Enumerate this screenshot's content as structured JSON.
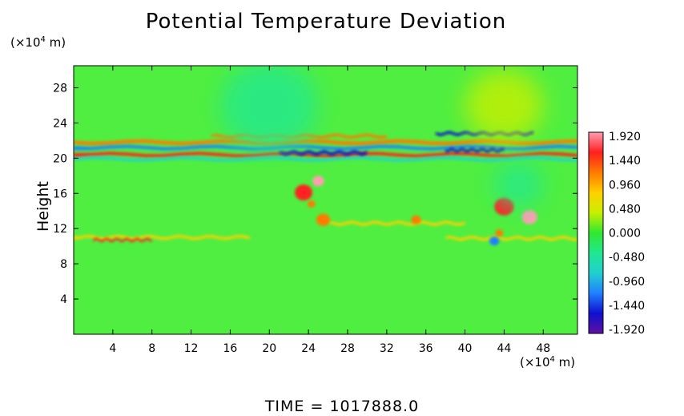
{
  "chart_data": {
    "type": "heatmap",
    "title": "Potential Temperature Deviation",
    "ylabel": "Height",
    "x_unit_prefix": "(×10",
    "x_unit_exp": "4",
    "x_unit_suffix": " m)",
    "y_unit_prefix": "(×10",
    "y_unit_exp": "4",
    "y_unit_suffix": " m)",
    "xlim": [
      0,
      51.5
    ],
    "ylim": [
      0,
      30.5
    ],
    "x_ticks": [
      4,
      8,
      12,
      16,
      20,
      24,
      28,
      32,
      36,
      40,
      44,
      48
    ],
    "y_ticks": [
      4,
      8,
      12,
      16,
      20,
      24,
      28
    ],
    "colorbar": {
      "labels": [
        "1.920",
        "1.440",
        "0.960",
        "0.480",
        "0.000",
        "-0.480",
        "-0.960",
        "-1.440",
        "-1.920"
      ],
      "range": [
        -1.92,
        1.92
      ],
      "colors": [
        "#ff9eb0",
        "#ff2020",
        "#ff7a00",
        "#ffd000",
        "#c8f000",
        "#30e830",
        "#20e890",
        "#20d0d0",
        "#2080ff",
        "#1010d0",
        "#6010a0"
      ]
    },
    "features": [
      {
        "kind": "band",
        "y": 21.8,
        "x0": 0,
        "x1": 51.5,
        "thickness": 0.4,
        "value": 1.2
      },
      {
        "kind": "band",
        "y": 21.2,
        "x0": 0,
        "x1": 51.5,
        "thickness": 0.35,
        "value": -1.2
      },
      {
        "kind": "band",
        "y": 20.4,
        "x0": 0,
        "x1": 51.5,
        "thickness": 0.35,
        "value": 1.5
      },
      {
        "kind": "band",
        "y": 19.9,
        "x0": 0,
        "x1": 51.5,
        "thickness": 0.3,
        "value": -0.9
      },
      {
        "kind": "band",
        "y": 22.5,
        "x0": 14,
        "x1": 32,
        "thickness": 0.3,
        "value": 1.2
      },
      {
        "kind": "band",
        "y": 20.6,
        "x0": 21,
        "x1": 30,
        "thickness": 0.35,
        "value": -1.7
      },
      {
        "kind": "band",
        "y": 22.8,
        "x0": 37,
        "x1": 47,
        "thickness": 0.3,
        "value": -1.6
      },
      {
        "kind": "band",
        "y": 20.9,
        "x0": 38,
        "x1": 44,
        "thickness": 0.3,
        "value": -1.7
      },
      {
        "kind": "band",
        "y": 11.0,
        "x0": 0,
        "x1": 18,
        "thickness": 0.3,
        "value": 0.9
      },
      {
        "kind": "band",
        "y": 10.7,
        "x0": 2,
        "x1": 8,
        "thickness": 0.25,
        "value": 1.4
      },
      {
        "kind": "band",
        "y": 10.9,
        "x0": 38,
        "x1": 51.5,
        "thickness": 0.3,
        "value": 0.8
      },
      {
        "kind": "band",
        "y": 12.6,
        "x0": 26,
        "x1": 40,
        "thickness": 0.3,
        "value": 0.7
      },
      {
        "kind": "blob",
        "x": 23.5,
        "y": 16.1,
        "r": 0.9,
        "value": 1.4
      },
      {
        "kind": "blob",
        "x": 25.0,
        "y": 17.4,
        "r": 0.6,
        "value": 1.9
      },
      {
        "kind": "blob",
        "x": 24.3,
        "y": 14.8,
        "r": 0.4,
        "value": 1.3
      },
      {
        "kind": "blob",
        "x": 25.5,
        "y": 13.0,
        "r": 0.7,
        "value": 1.3
      },
      {
        "kind": "blob",
        "x": 35.0,
        "y": 13.0,
        "r": 0.5,
        "value": 1.3
      },
      {
        "kind": "blob",
        "x": 44.0,
        "y": 14.5,
        "r": 1.0,
        "value": 1.4
      },
      {
        "kind": "blob",
        "x": 46.6,
        "y": 13.3,
        "r": 0.8,
        "value": 1.9
      },
      {
        "kind": "blob",
        "x": 43.5,
        "y": 11.5,
        "r": 0.4,
        "value": 1.3
      },
      {
        "kind": "blob",
        "x": 43.0,
        "y": 10.6,
        "r": 0.5,
        "value": -1.2
      },
      {
        "kind": "blob",
        "x": 20.0,
        "y": 26.0,
        "r": 5.0,
        "value": -0.35
      },
      {
        "kind": "blob",
        "x": 44.0,
        "y": 26.0,
        "r": 4.0,
        "value": 0.35
      },
      {
        "kind": "blob",
        "x": 45.5,
        "y": 17.0,
        "r": 2.5,
        "value": -0.25
      }
    ]
  },
  "time_label": "TIME",
  "time_eq": "=",
  "time_value": "1017888.0"
}
